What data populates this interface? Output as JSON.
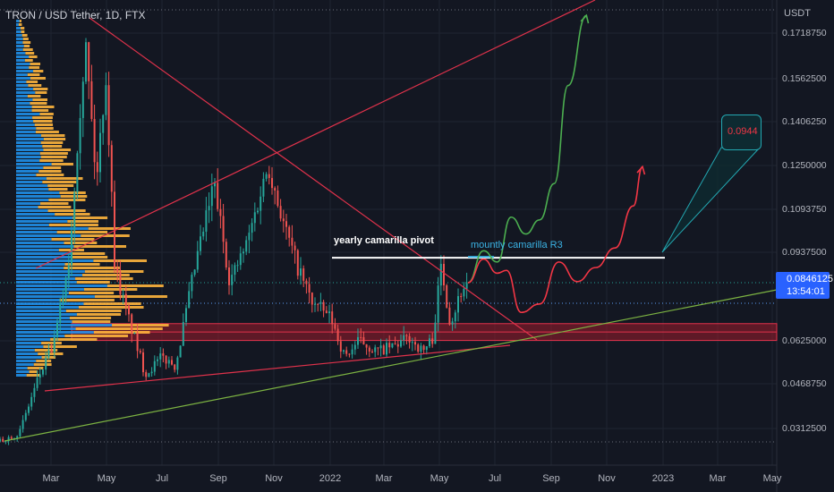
{
  "header": {
    "symbol_label": "TRON / USD Tether, 1D, FTX",
    "currency": "USDT"
  },
  "price_axis": [
    "0.1718750",
    "0.1562500",
    "0.1406250",
    "0.1250000",
    "0.1093750",
    "0.0937500",
    "0.0625000",
    "0.0468750",
    "0.0312500"
  ],
  "time_axis": [
    "Mar",
    "May",
    "Jul",
    "Sep",
    "Nov",
    "2022",
    "Mar",
    "May",
    "Jul",
    "Sep",
    "Nov",
    "2023",
    "Mar",
    "May"
  ],
  "last_price": {
    "value": "0.0846125",
    "countdown": "13:54:01",
    "color": "#2962ff"
  },
  "annotations": {
    "yearly_pivot": "yearly camarilla pivot",
    "monthly_r3": "mountly camarilla R3",
    "target_value": "0.0944"
  },
  "colors": {
    "background": "#131722",
    "candle_up": "#26a69a",
    "candle_down": "#ef5350",
    "volume_profile_up": "#2196f3",
    "volume_profile_down": "#ffb53d",
    "projection_green": "#4caf50",
    "projection_red": "#f23645",
    "trendline_red": "#e0324b",
    "trendline_green": "#7cb342",
    "support_zone": "#9c1b2c"
  },
  "chart_data": {
    "type": "line",
    "title": "TRON / USD Tether, 1D, FTX",
    "ylabel": "USDT",
    "ylim": [
      0.0265,
      0.182
    ],
    "x_range": [
      "2021-01-15",
      "2023-05-10"
    ],
    "grid": true,
    "series": [
      {
        "points": [
          [
            "2021-01-15",
            0.028
          ],
          [
            "2021-02-05",
            0.031
          ],
          [
            "2021-02-25",
            0.05
          ],
          [
            "2021-03-15",
            0.063
          ],
          [
            "2021-04-01",
            0.095
          ],
          [
            "2021-04-10",
            0.14
          ],
          [
            "2021-04-18",
            0.17
          ],
          [
            "2021-04-30",
            0.12
          ],
          [
            "2021-05-10",
            0.16
          ],
          [
            "2021-05-20",
            0.09
          ],
          [
            "2021-06-01",
            0.075
          ],
          [
            "2021-06-22",
            0.052
          ],
          [
            "2021-07-10",
            0.058
          ],
          [
            "2021-07-25",
            0.055
          ],
          [
            "2021-08-15",
            0.09
          ],
          [
            "2021-09-05",
            0.12
          ],
          [
            "2021-09-22",
            0.085
          ],
          [
            "2021-10-10",
            0.098
          ],
          [
            "2021-11-03",
            0.127
          ],
          [
            "2021-11-20",
            0.105
          ],
          [
            "2021-12-05",
            0.09
          ],
          [
            "2021-12-20",
            0.078
          ],
          [
            "2022-01-10",
            0.072
          ],
          [
            "2022-01-25",
            0.058
          ],
          [
            "2022-02-10",
            0.064
          ],
          [
            "2022-03-01",
            0.06
          ],
          [
            "2022-03-20",
            0.062
          ],
          [
            "2022-04-05",
            0.065
          ],
          [
            "2022-04-20",
            0.06
          ],
          [
            "2022-05-01",
            0.065
          ],
          [
            "2022-05-10",
            0.091
          ],
          [
            "2022-05-20",
            0.07
          ],
          [
            "2022-06-01",
            0.082
          ],
          [
            "2022-06-08",
            0.0846
          ]
        ]
      },
      {
        "points": [
          [
            "2022-06-08",
            0.0846
          ],
          [
            "2022-06-25",
            0.096
          ],
          [
            "2022-07-10",
            0.092
          ],
          [
            "2022-07-25",
            0.108
          ],
          [
            "2022-08-10",
            0.102
          ],
          [
            "2022-08-25",
            0.107
          ],
          [
            "2022-09-10",
            0.12
          ],
          [
            "2022-09-25",
            0.155
          ],
          [
            "2022-10-15",
            0.18
          ]
        ]
      },
      {
        "points": [
          [
            "2022-06-08",
            0.0846
          ],
          [
            "2022-06-25",
            0.093
          ],
          [
            "2022-07-10",
            0.088
          ],
          [
            "2022-07-20",
            0.089
          ],
          [
            "2022-08-05",
            0.074
          ],
          [
            "2022-08-25",
            0.077
          ],
          [
            "2022-09-15",
            0.092
          ],
          [
            "2022-10-05",
            0.085
          ],
          [
            "2022-10-25",
            0.09
          ],
          [
            "2022-11-15",
            0.097
          ],
          [
            "2022-12-05",
            0.112
          ],
          [
            "2022-12-15",
            0.126
          ]
        ]
      }
    ],
    "levels": [
      {
        "label": "yearly camarilla pivot",
        "value": 0.0935
      },
      {
        "label": "mountly camarilla R3",
        "value": 0.0935
      },
      {
        "value": 0.0944
      }
    ],
    "zones": [
      {
        "from": 0.064,
        "to": 0.07
      }
    ]
  }
}
